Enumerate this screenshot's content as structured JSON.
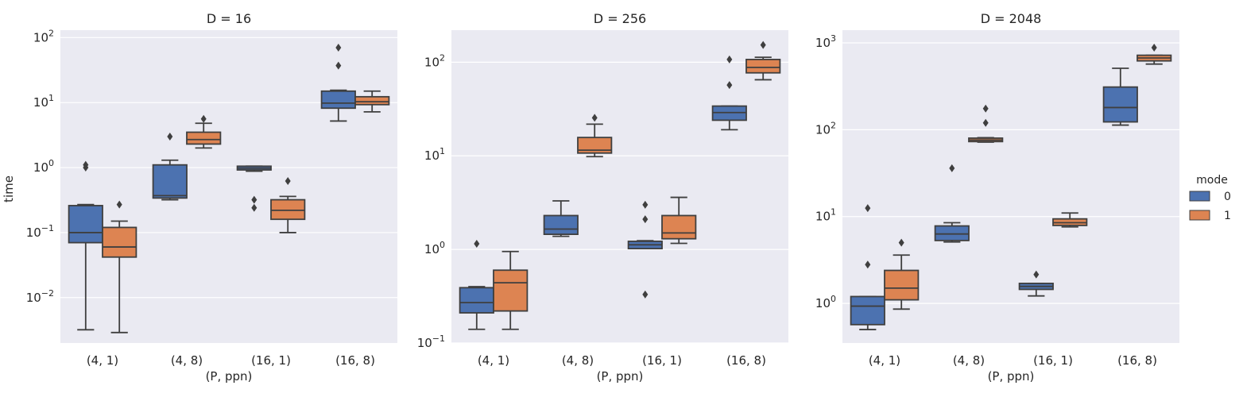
{
  "figure": {
    "ylabel": "time",
    "legend": {
      "title": "mode",
      "placement": "right-center",
      "entries": [
        "0",
        "1"
      ]
    },
    "colors": {
      "mode_0": "#4c72b0",
      "mode_1": "#dd8452",
      "panel_bg": "#eaeaf2",
      "grid": "#ffffff",
      "line": "#3f3f3f"
    }
  },
  "chart_data": [
    {
      "type": "box",
      "title": "D = 16",
      "xlabel": "(P, ppn)",
      "ylabel": "time",
      "yscale": "log",
      "ylim": [
        0.002,
        130
      ],
      "yticks": [
        0.01,
        0.1,
        1,
        10,
        100
      ],
      "ytick_labels": [
        [
          "10",
          "−2"
        ],
        [
          "10",
          "−1"
        ],
        [
          "10",
          "0"
        ],
        [
          "10",
          "1"
        ],
        [
          "10",
          "2"
        ]
      ],
      "grid": true,
      "categories": [
        "(4, 1)",
        "(4, 8)",
        "(16, 1)",
        "(16, 8)"
      ],
      "series": [
        {
          "name": "0",
          "boxes": [
            {
              "whislo": 0.0032,
              "q1": 0.07,
              "med": 0.1,
              "q3": 0.26,
              "whishi": 0.27,
              "fliers": [
                1.0,
                1.1
              ]
            },
            {
              "whislo": 0.32,
              "q1": 0.34,
              "med": 0.37,
              "q3": 1.1,
              "whishi": 1.3,
              "fliers": [
                3.0
              ]
            },
            {
              "whislo": 0.88,
              "q1": 0.92,
              "med": 0.98,
              "q3": 1.05,
              "whishi": 1.05,
              "fliers": [
                0.32,
                0.24
              ]
            },
            {
              "whislo": 5.2,
              "q1": 8.2,
              "med": 9.8,
              "q3": 15,
              "whishi": 15.5,
              "fliers": [
                37,
                70
              ]
            }
          ]
        },
        {
          "name": "1",
          "boxes": [
            {
              "whislo": 0.0029,
              "q1": 0.042,
              "med": 0.06,
              "q3": 0.12,
              "whishi": 0.15,
              "fliers": [
                0.27
              ]
            },
            {
              "whislo": 2.0,
              "q1": 2.3,
              "med": 2.7,
              "q3": 3.5,
              "whishi": 4.8,
              "fliers": [
                5.6
              ]
            },
            {
              "whislo": 0.1,
              "q1": 0.16,
              "med": 0.22,
              "q3": 0.32,
              "whishi": 0.36,
              "fliers": [
                0.62
              ]
            },
            {
              "whislo": 7.2,
              "q1": 9.3,
              "med": 10.3,
              "q3": 12.3,
              "whishi": 15,
              "fliers": []
            }
          ]
        }
      ]
    },
    {
      "type": "box",
      "title": "D = 256",
      "xlabel": "(P, ppn)",
      "ylabel": "",
      "yscale": "log",
      "ylim": [
        0.1,
        220
      ],
      "yticks": [
        0.1,
        1,
        10,
        100
      ],
      "ytick_labels": [
        [
          "10",
          "−1"
        ],
        [
          "10",
          "0"
        ],
        [
          "10",
          "1"
        ],
        [
          "10",
          "2"
        ]
      ],
      "grid": true,
      "categories": [
        "(4, 1)",
        "(4, 8)",
        "(16, 1)",
        "(16, 8)"
      ],
      "series": [
        {
          "name": "0",
          "boxes": [
            {
              "whislo": 0.14,
              "q1": 0.21,
              "med": 0.27,
              "q3": 0.39,
              "whishi": 0.4,
              "fliers": [
                1.15
              ]
            },
            {
              "whislo": 1.38,
              "q1": 1.45,
              "med": 1.65,
              "q3": 2.3,
              "whishi": 3.3,
              "fliers": []
            },
            {
              "whislo": 1.02,
              "q1": 1.02,
              "med": 1.12,
              "q3": 1.22,
              "whishi": 1.24,
              "fliers": [
                2.1,
                3.0,
                0.33
              ]
            },
            {
              "whislo": 19,
              "q1": 24,
              "med": 29,
              "q3": 34,
              "whishi": 34,
              "fliers": [
                57,
                107
              ]
            }
          ]
        },
        {
          "name": "1",
          "boxes": [
            {
              "whislo": 0.14,
              "q1": 0.22,
              "med": 0.44,
              "q3": 0.6,
              "whishi": 0.95,
              "fliers": []
            },
            {
              "whislo": 9.8,
              "q1": 10.7,
              "med": 11.5,
              "q3": 15.7,
              "whishi": 21.8,
              "fliers": [
                25.5
              ]
            },
            {
              "whislo": 1.16,
              "q1": 1.3,
              "med": 1.5,
              "q3": 2.3,
              "whishi": 3.6,
              "fliers": []
            },
            {
              "whislo": 65,
              "q1": 77,
              "med": 88,
              "q3": 107,
              "whishi": 113,
              "fliers": [
                153
              ]
            }
          ]
        }
      ]
    },
    {
      "type": "box",
      "title": "D = 2048",
      "xlabel": "(P, ppn)",
      "ylabel": "",
      "yscale": "log",
      "ylim": [
        0.35,
        1400
      ],
      "yticks": [
        1,
        10,
        100,
        1000
      ],
      "ytick_labels": [
        [
          "10",
          "0"
        ],
        [
          "10",
          "1"
        ],
        [
          "10",
          "2"
        ],
        [
          "10",
          "3"
        ]
      ],
      "grid": true,
      "categories": [
        "(4, 1)",
        "(4, 8)",
        "(16, 1)",
        "(16, 8)"
      ],
      "series": [
        {
          "name": "0",
          "boxes": [
            {
              "whislo": 0.5,
              "q1": 0.57,
              "med": 0.93,
              "q3": 1.2,
              "whishi": 1.2,
              "fliers": [
                2.8,
                12.5
              ]
            },
            {
              "whislo": 5.1,
              "q1": 5.3,
              "med": 6.3,
              "q3": 7.8,
              "whishi": 8.5,
              "fliers": [
                36
              ]
            },
            {
              "whislo": 1.22,
              "q1": 1.45,
              "med": 1.57,
              "q3": 1.7,
              "whishi": 1.7,
              "fliers": [
                2.15
              ]
            },
            {
              "whislo": 113,
              "q1": 123,
              "med": 180,
              "q3": 310,
              "whishi": 510,
              "fliers": []
            }
          ]
        },
        {
          "name": "1",
          "boxes": [
            {
              "whislo": 0.86,
              "q1": 1.1,
              "med": 1.5,
              "q3": 2.4,
              "whishi": 3.6,
              "fliers": [
                5.0
              ]
            },
            {
              "whislo": 72,
              "q1": 73,
              "med": 76,
              "q3": 80,
              "whishi": 81,
              "fliers": [
                120,
                175
              ]
            },
            {
              "whislo": 7.6,
              "q1": 7.9,
              "med": 8.5,
              "q3": 9.4,
              "whishi": 11,
              "fliers": []
            },
            {
              "whislo": 570,
              "q1": 620,
              "med": 670,
              "q3": 720,
              "whishi": 720,
              "fliers": [
                880
              ]
            }
          ]
        }
      ]
    }
  ]
}
